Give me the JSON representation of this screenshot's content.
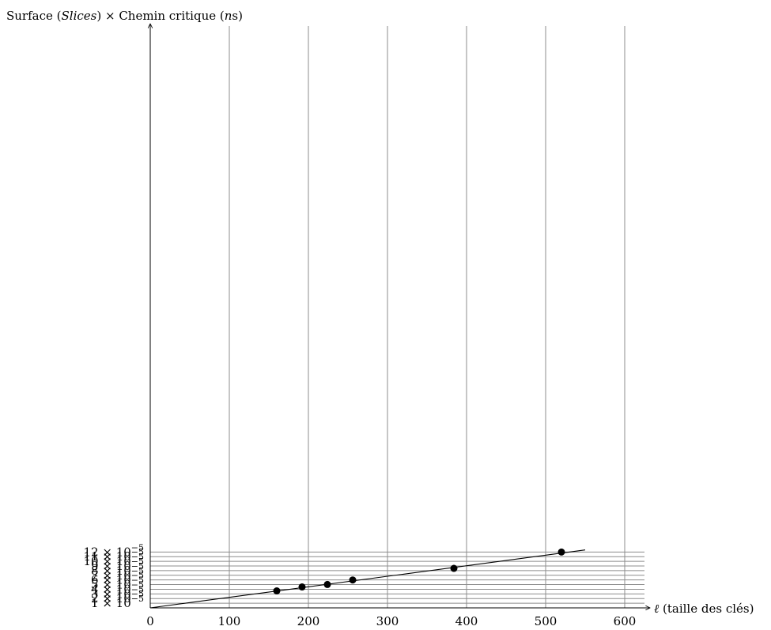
{
  "chart_data": {
    "type": "scatter",
    "ylabel": {
      "prefix": "Surface (",
      "italic1": "Slices",
      "middle": ") × Chemin critique (",
      "italic2": "n",
      "suffix": "s)"
    },
    "xlabel": {
      "italic": "ℓ",
      "text": " (taille des clés)"
    },
    "xlim": [
      0,
      625
    ],
    "ylim": [
      0,
      0.000125
    ],
    "grid": true,
    "x_ticks": [
      {
        "value": 0,
        "label": "0"
      },
      {
        "value": 100,
        "label": "100"
      },
      {
        "value": 200,
        "label": "200"
      },
      {
        "value": 300,
        "label": "300"
      },
      {
        "value": 400,
        "label": "400"
      },
      {
        "value": 500,
        "label": "500"
      },
      {
        "value": 600,
        "label": "600"
      }
    ],
    "y_ticks": [
      {
        "value": 1e-05,
        "mantissa": "1 × 10",
        "exponent": "−5"
      },
      {
        "value": 2e-05,
        "mantissa": "2 × 10",
        "exponent": "−5"
      },
      {
        "value": 3e-05,
        "mantissa": "3 × 10",
        "exponent": "−5"
      },
      {
        "value": 4e-05,
        "mantissa": "4 × 10",
        "exponent": "−5"
      },
      {
        "value": 5e-05,
        "mantissa": "5 × 10",
        "exponent": "−5"
      },
      {
        "value": 6e-05,
        "mantissa": "6 × 10",
        "exponent": "−5"
      },
      {
        "value": 7e-05,
        "mantissa": "7 × 10",
        "exponent": "−5"
      },
      {
        "value": 8e-05,
        "mantissa": "8 × 10",
        "exponent": "−5"
      },
      {
        "value": 9e-05,
        "mantissa": "9 × 10",
        "exponent": "−5"
      },
      {
        "value": 0.0001,
        "mantissa": "10 × 10",
        "exponent": "−5"
      },
      {
        "value": 0.00011,
        "mantissa": "11 × 10",
        "exponent": "−5"
      },
      {
        "value": 0.00012,
        "mantissa": "12 × 10",
        "exponent": "−5"
      }
    ],
    "points": [
      {
        "x": 160,
        "y": 3.64e-05
      },
      {
        "x": 192,
        "y": 4.49e-05
      },
      {
        "x": 224,
        "y": 5.02e-05
      },
      {
        "x": 256,
        "y": 5.99e-05
      },
      {
        "x": 384,
        "y": 8.48e-05
      },
      {
        "x": 520,
        "y": 0.0001199
      }
    ],
    "fit_line": {
      "x0": 0,
      "y0": 0,
      "x1": 550,
      "y1": 0.0001244
    }
  }
}
